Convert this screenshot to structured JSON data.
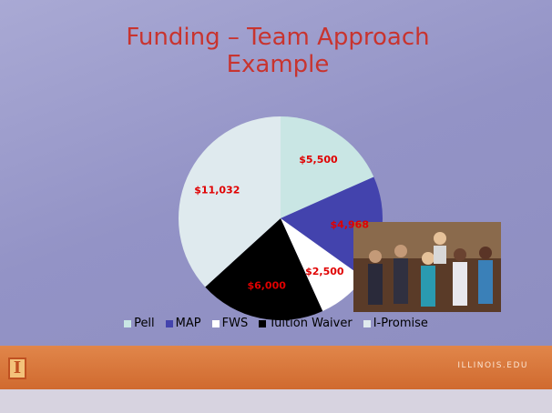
{
  "chart_data": {
    "type": "pie",
    "title": "Funding – Team Approach Example",
    "categories": [
      "Pell",
      "MAP",
      "FWS",
      "Tuition Waiver",
      "I-Promise"
    ],
    "values": [
      5500,
      4968,
      2500,
      6000,
      11032
    ],
    "value_labels": [
      "$5,500",
      "$4,968",
      "$2,500",
      "$6,000",
      "$11,032"
    ],
    "colors": [
      "#c9e6e4",
      "#4343ad",
      "#ffffff",
      "#000000",
      "#dfeaee"
    ],
    "label_color": "#e00000"
  },
  "footer": {
    "logo": "I",
    "url": "ILLINOIS.EDU"
  }
}
